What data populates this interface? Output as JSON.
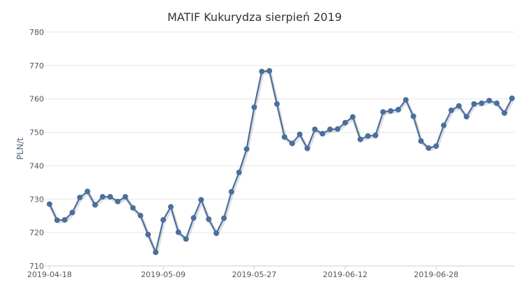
{
  "chart_data": {
    "type": "line",
    "title": "MATIF Kukurydza sierpień 2019",
    "ylabel": "PLN/t",
    "xlabel": "",
    "ylim": [
      710,
      780
    ],
    "y_ticks": [
      710,
      720,
      730,
      740,
      750,
      760,
      770,
      780
    ],
    "x_tick_labels": [
      "2019-04-18",
      "2019-05-09",
      "2019-05-27",
      "2019-06-12",
      "2019-06-28"
    ],
    "x_tick_indices": [
      0,
      15,
      27,
      39,
      51
    ],
    "grid": true,
    "legend": "none",
    "series": [
      {
        "color": "#4a6f9e",
        "values": [
          728.5,
          723.7,
          723.8,
          726.0,
          730.5,
          732.3,
          728.3,
          730.7,
          730.7,
          729.3,
          730.7,
          727.4,
          725.1,
          719.4,
          714.1,
          723.8,
          727.7,
          720.1,
          718.1,
          724.4,
          729.8,
          724.0,
          719.8,
          724.3,
          732.2,
          738.0,
          745.0,
          757.5,
          768.2,
          768.4,
          758.5,
          748.6,
          746.7,
          749.4,
          745.2,
          750.9,
          749.6,
          750.9,
          751.0,
          752.9,
          754.6,
          747.9,
          748.9,
          749.1,
          756.1,
          756.4,
          756.8,
          759.7,
          754.8,
          747.4,
          745.3,
          745.9,
          752.1,
          756.6,
          757.9,
          754.7,
          758.5,
          758.7,
          759.5,
          758.7,
          755.8,
          760.2
        ]
      }
    ]
  }
}
